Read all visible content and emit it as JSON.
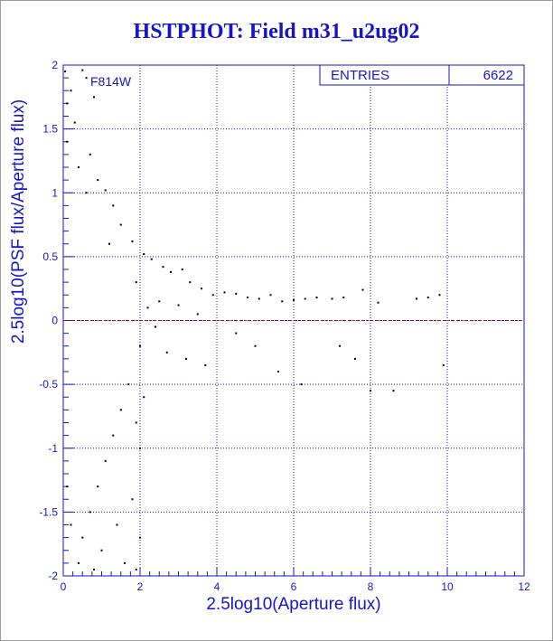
{
  "chart_data": {
    "type": "scatter",
    "title": "HSTPHOT: Field m31_u2ug02",
    "xlabel": "2.5log10(Aperture flux)",
    "ylabel": "2.5log10(PSF flux/Aperture flux)",
    "xlim": [
      0,
      12
    ],
    "ylim": [
      -2,
      2
    ],
    "x_ticks": [
      0,
      2,
      4,
      6,
      8,
      10,
      12
    ],
    "y_ticks": [
      -2,
      -1.5,
      -1,
      -0.5,
      0,
      0.5,
      1,
      1.5,
      2
    ],
    "grid": true,
    "reference_line": {
      "y": 0,
      "color": "#cc0000",
      "style": "dashed"
    },
    "annotation": "F814W",
    "stats_box": {
      "label": "ENTRIES",
      "value": "6622",
      "placement": "top-right"
    },
    "colors": {
      "text": "#1515c8",
      "grid": "#1515c8",
      "points": "#000000"
    },
    "series": [
      {
        "points": [
          [
            0.05,
            1.95
          ],
          [
            0.1,
            1.7
          ],
          [
            0.1,
            1.4
          ],
          [
            0.2,
            1.8
          ],
          [
            0.3,
            1.55
          ],
          [
            0.5,
            1.96
          ],
          [
            0.6,
            1.9
          ],
          [
            0.8,
            1.75
          ],
          [
            0.4,
            1.2
          ],
          [
            0.7,
            1.3
          ],
          [
            0.9,
            1.1
          ],
          [
            1.1,
            1.02
          ],
          [
            0.6,
            1.0
          ],
          [
            1.3,
            0.9
          ],
          [
            1.5,
            0.75
          ],
          [
            1.2,
            0.6
          ],
          [
            1.8,
            0.62
          ],
          [
            2.1,
            0.52
          ],
          [
            2.3,
            0.48
          ],
          [
            2.6,
            0.42
          ],
          [
            2.8,
            0.38
          ],
          [
            3.1,
            0.4
          ],
          [
            3.3,
            0.3
          ],
          [
            3.6,
            0.25
          ],
          [
            3.9,
            0.2
          ],
          [
            4.2,
            0.22
          ],
          [
            4.5,
            0.21
          ],
          [
            4.8,
            0.18
          ],
          [
            5.1,
            0.17
          ],
          [
            5.4,
            0.2
          ],
          [
            5.7,
            0.15
          ],
          [
            6.0,
            0.16
          ],
          [
            6.3,
            0.17
          ],
          [
            6.6,
            0.18
          ],
          [
            7.0,
            0.17
          ],
          [
            7.3,
            0.18
          ],
          [
            7.8,
            0.24
          ],
          [
            8.2,
            0.14
          ],
          [
            9.2,
            0.17
          ],
          [
            9.5,
            0.18
          ],
          [
            9.8,
            0.2
          ],
          [
            2.5,
            0.15
          ],
          [
            3.0,
            0.12
          ],
          [
            3.5,
            0.05
          ],
          [
            1.9,
            0.3
          ],
          [
            2.2,
            0.1
          ],
          [
            2.4,
            -0.05
          ],
          [
            2.0,
            -0.2
          ],
          [
            2.7,
            -0.25
          ],
          [
            3.2,
            -0.3
          ],
          [
            3.7,
            -0.35
          ],
          [
            4.5,
            -0.1
          ],
          [
            5.0,
            -0.2
          ],
          [
            5.6,
            -0.4
          ],
          [
            6.2,
            -0.5
          ],
          [
            7.2,
            -0.2
          ],
          [
            7.6,
            -0.3
          ],
          [
            8.0,
            -0.55
          ],
          [
            8.6,
            -0.55
          ],
          [
            9.9,
            -0.35
          ],
          [
            1.7,
            -0.5
          ],
          [
            1.5,
            -0.7
          ],
          [
            1.3,
            -0.9
          ],
          [
            1.9,
            -0.8
          ],
          [
            2.0,
            -1.0
          ],
          [
            1.1,
            -1.1
          ],
          [
            0.9,
            -1.3
          ],
          [
            0.7,
            -1.5
          ],
          [
            0.5,
            -1.7
          ],
          [
            0.4,
            -1.9
          ],
          [
            0.2,
            -1.6
          ],
          [
            0.1,
            -1.3
          ],
          [
            1.0,
            -1.8
          ],
          [
            1.4,
            -1.6
          ],
          [
            1.8,
            -1.4
          ],
          [
            2.0,
            -1.7
          ],
          [
            1.9,
            -1.95
          ],
          [
            1.6,
            -1.9
          ],
          [
            0.8,
            -1.95
          ],
          [
            2.1,
            -0.6
          ]
        ]
      }
    ]
  }
}
